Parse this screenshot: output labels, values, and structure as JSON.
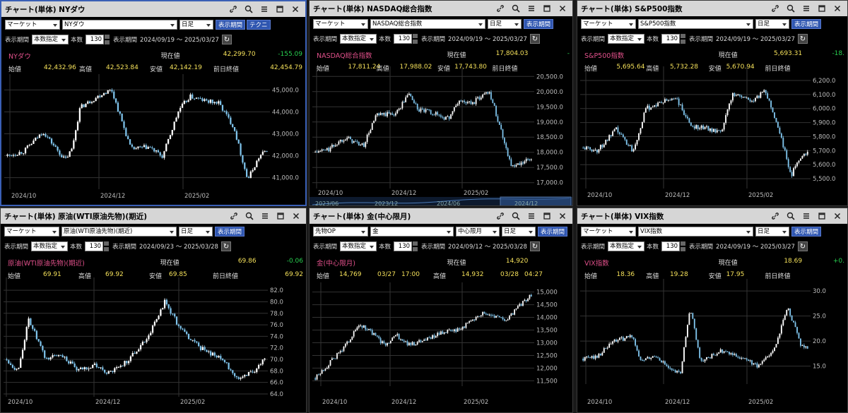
{
  "labels": {
    "market": "マーケット",
    "period": "表示期間",
    "count_spec": "本数指定",
    "count": "本数",
    "current": "現在値",
    "open": "始値",
    "high": "高値",
    "low": "安値",
    "prev_close": "前日終値",
    "daily": "日足",
    "show_period_btn": "表示期間",
    "technical_btn": "テクニ"
  },
  "panels": [
    {
      "id": "nydow",
      "title": "チャート(単体) NYダウ",
      "market": "マーケット",
      "symbol_select": "NYダウ",
      "count_value": "130",
      "date_range": "2024/09/19 ～ 2025/03/27",
      "symbol_label": "NYダウ",
      "current": "42,299.70",
      "change": "-155.09",
      "open": "42,432.96",
      "high": "42,523.84",
      "low": "42,142.19",
      "prev_close": "42,454.79",
      "y_ticks": [
        "45,000.0",
        "44,000.0",
        "43,000.0",
        "42,000.0",
        "41,000.0"
      ],
      "x_ticks": [
        "2024/10",
        "2024/12",
        "2025/02"
      ],
      "chart_data": {
        "type": "line",
        "x": [
          "2024/09/19",
          "2024/10/01",
          "2024/10/15",
          "2024/10/31",
          "2024/11/05",
          "2024/11/11",
          "2024/11/29",
          "2024/12/04",
          "2024/12/18",
          "2024/12/31",
          "2025/01/10",
          "2025/01/22",
          "2025/01/30",
          "2025/02/10",
          "2025/02/20",
          "2025/03/03",
          "2025/03/13",
          "2025/03/21",
          "2025/03/27"
        ],
        "series": [
          {
            "values": [
              42000,
              42200,
              43100,
              41800,
              42300,
              44200,
              44900,
              45000,
              42300,
              42400,
              41950,
              44100,
              44700,
              44500,
              44400,
              43300,
              40900,
              41900,
              42300
            ]
          }
        ],
        "ylim": [
          40600,
          45400
        ]
      }
    },
    {
      "id": "nasdaq",
      "title": "チャート(単体) NASDAQ総合指数",
      "market": "マーケット",
      "symbol_select": "NASDAQ総合指数",
      "count_value": "130",
      "date_range": "2024/09/19 ～ 2025/03/27",
      "symbol_label": "NASDAQ総合指数",
      "current": "17,804.03",
      "change": "-",
      "open": "17,811.24",
      "high": "17,988.02",
      "low": "17,743.80",
      "prev_close": "",
      "y_ticks": [
        "20,500.0",
        "20,000.0",
        "19,500.0",
        "19,000.0",
        "18,500.0",
        "18,000.0",
        "17,500.0",
        "17,000.0"
      ],
      "x_ticks": [
        "2024/10",
        "2024/12",
        "2025/02"
      ],
      "overview_ticks": [
        "2023/06",
        "2023/12",
        "2024/06",
        "2024/12"
      ],
      "chart_data": {
        "type": "line",
        "x": [
          "2024/09/19",
          "2024/10/01",
          "2024/10/15",
          "2024/10/31",
          "2024/11/11",
          "2024/11/29",
          "2024/12/10",
          "2024/12/18",
          "2024/12/31",
          "2025/01/13",
          "2025/01/23",
          "2025/02/03",
          "2025/02/18",
          "2025/02/28",
          "2025/03/10",
          "2025/03/18",
          "2025/03/27"
        ],
        "series": [
          {
            "values": [
              18000,
              18100,
              18500,
              18200,
              19200,
              19300,
              19950,
              19400,
              19300,
              19100,
              19700,
              19600,
              20050,
              18800,
              17500,
              17600,
              17800
            ]
          }
        ],
        "ylim": [
          16900,
          20600
        ]
      }
    },
    {
      "id": "sp500",
      "title": "チャート(単体) S&P500指数",
      "market": "マーケット",
      "symbol_select": "S&P500指数",
      "count_value": "130",
      "date_range": "2024/09/19 ～ 2025/03/27",
      "symbol_label": "S&P500指数",
      "current": "5,693.31",
      "change": "-18.",
      "open": "5,695.64",
      "high": "5,732.28",
      "low": "5,670.94",
      "prev_close": "",
      "y_ticks": [
        "6,200.0",
        "6,100.0",
        "6,000.0",
        "5,900.0",
        "5,800.0",
        "5,700.0",
        "5,600.0",
        "5,500.0"
      ],
      "x_ticks": [
        "2024/10",
        "2024/12",
        "2025/02"
      ],
      "chart_data": {
        "type": "line",
        "x": [
          "2024/09/19",
          "2024/10/01",
          "2024/10/17",
          "2024/10/31",
          "2024/11/11",
          "2024/12/06",
          "2024/12/18",
          "2025/01/02",
          "2025/01/13",
          "2025/01/23",
          "2025/02/10",
          "2025/02/19",
          "2025/03/03",
          "2025/03/13",
          "2025/03/21",
          "2025/03/27"
        ],
        "series": [
          {
            "values": [
              5720,
              5700,
              5850,
              5700,
              6000,
              6080,
              5880,
              5860,
              5820,
              6110,
              6050,
              6140,
              5850,
              5520,
              5660,
              5690
            ]
          }
        ],
        "ylim": [
          5450,
          6250
        ]
      }
    },
    {
      "id": "crude",
      "title": "チャート(単体) 原油(WTI原油先物)(期近)",
      "market": "マーケット",
      "symbol_select": "原油(WTI原油先物)(期近)",
      "count_value": "130",
      "date_range": "2024/09/23 ～ 2025/03/28",
      "symbol_label": "原油(WTI原油先物)(期近)",
      "current": "69.86",
      "change": "-0.06",
      "open": "69.91",
      "high": "69.92",
      "low": "69.85",
      "prev_close": "69.92",
      "y_ticks": [
        "82.0",
        "80.0",
        "78.0",
        "76.0",
        "74.0",
        "72.0",
        "70.0",
        "68.0",
        "66.0",
        "64.0"
      ],
      "x_ticks": [
        "2024/10",
        "2024/12",
        "2025/02"
      ],
      "chart_data": {
        "type": "line",
        "x": [
          "2024/09/23",
          "2024/10/01",
          "2024/10/09",
          "2024/10/21",
          "2024/11/01",
          "2024/11/13",
          "2024/11/25",
          "2024/12/06",
          "2024/12/20",
          "2025/01/03",
          "2025/01/15",
          "2025/01/27",
          "2025/02/10",
          "2025/02/25",
          "2025/03/10",
          "2025/03/20",
          "2025/03/28"
        ],
        "series": [
          {
            "values": [
              70,
              68,
              77,
              70,
              71,
              68,
              69,
              67.5,
              70,
              74,
              80,
              75,
              72,
              70,
              66.5,
              68,
              69.9
            ]
          }
        ],
        "ylim": [
          64,
          83
        ]
      }
    },
    {
      "id": "gold",
      "title": "チャート(単体) 金(中心限月)",
      "market": "先物OP",
      "symbol_select": "金",
      "contract_select": "中心限月",
      "count_value": "130",
      "date_range": "2024/09/12 ～ 2025/03/28",
      "symbol_label": "金(中心限月)",
      "current": "14,920",
      "change": "",
      "open": "14,769",
      "open_time": "03/27",
      "open_clock": "17:00",
      "high": "14,932",
      "high_time": "03/28",
      "high_clock": "04:27",
      "y_ticks": [
        "15,000",
        "14,500",
        "14,000",
        "13,500",
        "13,000",
        "12,500",
        "12,000",
        "11,500"
      ],
      "x_ticks": [
        "2024/10",
        "2024/12",
        "2025/02"
      ],
      "chart_data": {
        "type": "line",
        "x": [
          "2024/09/12",
          "2024/09/25",
          "2024/10/08",
          "2024/10/22",
          "2024/10/31",
          "2024/11/14",
          "2024/11/25",
          "2024/12/06",
          "2024/12/20",
          "2025/01/06",
          "2025/01/20",
          "2025/01/31",
          "2025/02/12",
          "2025/02/24",
          "2025/03/06",
          "2025/03/18",
          "2025/03/28"
        ],
        "series": [
          {
            "values": [
              11600,
              12200,
              12800,
              13700,
              13500,
              12900,
              13300,
              12900,
              13100,
              13400,
              13500,
              13800,
              14200,
              14000,
              13900,
              14500,
              14900
            ]
          }
        ],
        "ylim": [
          11400,
          15100
        ]
      }
    },
    {
      "id": "vix",
      "title": "チャート(単体) VIX指数",
      "market": "マーケット",
      "symbol_select": "VIX指数",
      "count_value": "130",
      "date_range": "2024/09/19 ～ 2025/03/27",
      "symbol_label": "VIX指数",
      "current": "18.69",
      "change": "+0.",
      "open": "18.36",
      "high": "19.28",
      "low": "17.95",
      "prev_close": "",
      "y_ticks": [
        "30.0",
        "25.0",
        "20.0",
        "15.0"
      ],
      "x_ticks": [
        "2024/10",
        "2024/12",
        "2025/02"
      ],
      "chart_data": {
        "type": "line",
        "x": [
          "2024/09/19",
          "2024/10/01",
          "2024/10/15",
          "2024/10/31",
          "2024/11/06",
          "2024/11/20",
          "2024/12/02",
          "2024/12/10",
          "2024/12/18",
          "2024/12/27",
          "2025/01/13",
          "2025/01/27",
          "2025/02/14",
          "2025/02/28",
          "2025/03/10",
          "2025/03/13",
          "2025/03/21",
          "2025/03/27"
        ],
        "series": [
          {
            "values": [
              16.5,
              17,
              20,
              21,
              16,
              17,
              14,
              13.5,
              27,
              16,
              18,
              17,
              15,
              19,
              27,
              25,
              19.5,
              18.7
            ]
          }
        ],
        "ylim": [
          12,
          31
        ]
      }
    }
  ],
  "colors": {
    "candle_up": "#ffffff",
    "candle_down": "#7fc4ec",
    "grid": "#333333",
    "axis_text": "#bbbbbb",
    "symbol": "#e0508a",
    "value": "#f4e05a",
    "negative": "#28d050",
    "active_border": "#3a5fb5"
  }
}
